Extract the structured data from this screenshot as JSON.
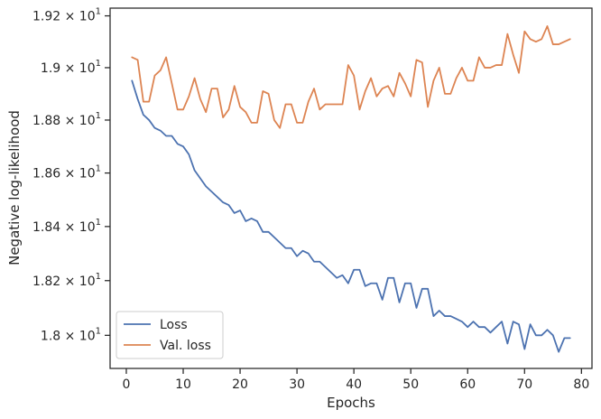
{
  "chart_data": {
    "type": "line",
    "title": "",
    "xlabel": "Epochs",
    "ylabel": "Negative log-likelihood",
    "xlim": [
      -2.85,
      81.85
    ],
    "ylim": [
      17.88,
      19.23
    ],
    "yscale": "log",
    "grid": false,
    "legend_position": "lower-left",
    "x_ticks": [
      {
        "value": 0,
        "label": "0"
      },
      {
        "value": 10,
        "label": "10"
      },
      {
        "value": 20,
        "label": "20"
      },
      {
        "value": 30,
        "label": "30"
      },
      {
        "value": 40,
        "label": "40"
      },
      {
        "value": 50,
        "label": "50"
      },
      {
        "value": 60,
        "label": "60"
      },
      {
        "value": 70,
        "label": "70"
      },
      {
        "value": 80,
        "label": "80"
      }
    ],
    "y_ticks": [
      {
        "value": 18.0,
        "mantissa": "1.8 × 10",
        "exp": "1"
      },
      {
        "value": 18.2,
        "mantissa": "1.82 × 10",
        "exp": "1"
      },
      {
        "value": 18.4,
        "mantissa": "1.84 × 10",
        "exp": "1"
      },
      {
        "value": 18.6,
        "mantissa": "1.86 × 10",
        "exp": "1"
      },
      {
        "value": 18.8,
        "mantissa": "1.88 × 10",
        "exp": "1"
      },
      {
        "value": 19.0,
        "mantissa": "1.9 × 10",
        "exp": "1"
      },
      {
        "value": 19.2,
        "mantissa": "1.92 × 10",
        "exp": "1"
      }
    ],
    "x": [
      1,
      2,
      3,
      4,
      5,
      6,
      7,
      8,
      9,
      10,
      11,
      12,
      13,
      14,
      15,
      16,
      17,
      18,
      19,
      20,
      21,
      22,
      23,
      24,
      25,
      26,
      27,
      28,
      29,
      30,
      31,
      32,
      33,
      34,
      35,
      36,
      37,
      38,
      39,
      40,
      41,
      42,
      43,
      44,
      45,
      46,
      47,
      48,
      49,
      50,
      51,
      52,
      53,
      54,
      55,
      56,
      57,
      58,
      59,
      60,
      61,
      62,
      63,
      64,
      65,
      66,
      67,
      68,
      69,
      70,
      71,
      72,
      73,
      74,
      75,
      76,
      77,
      78
    ],
    "series": [
      {
        "name": "Loss",
        "color": "#4c72b0",
        "values": [
          18.95,
          18.88,
          18.82,
          18.8,
          18.77,
          18.76,
          18.74,
          18.74,
          18.71,
          18.7,
          18.67,
          18.61,
          18.58,
          18.55,
          18.53,
          18.51,
          18.49,
          18.48,
          18.45,
          18.46,
          18.42,
          18.43,
          18.42,
          18.38,
          18.38,
          18.36,
          18.34,
          18.32,
          18.32,
          18.29,
          18.31,
          18.3,
          18.27,
          18.27,
          18.25,
          18.23,
          18.21,
          18.22,
          18.19,
          18.24,
          18.24,
          18.18,
          18.19,
          18.19,
          18.13,
          18.21,
          18.21,
          18.12,
          18.19,
          18.19,
          18.1,
          18.17,
          18.17,
          18.07,
          18.09,
          18.07,
          18.07,
          18.06,
          18.05,
          18.03,
          18.05,
          18.03,
          18.03,
          18.01,
          18.03,
          18.05,
          17.97,
          18.05,
          18.04,
          17.95,
          18.04,
          18.0,
          18.0,
          18.02,
          18.0,
          17.94,
          17.99,
          17.99
        ]
      },
      {
        "name": "Val. loss",
        "color": "#dd8452",
        "values": [
          19.04,
          19.03,
          18.87,
          18.87,
          18.97,
          18.99,
          19.04,
          18.94,
          18.84,
          18.84,
          18.89,
          18.96,
          18.88,
          18.83,
          18.92,
          18.92,
          18.81,
          18.84,
          18.93,
          18.85,
          18.83,
          18.79,
          18.79,
          18.91,
          18.9,
          18.8,
          18.77,
          18.86,
          18.86,
          18.79,
          18.79,
          18.87,
          18.92,
          18.84,
          18.86,
          18.86,
          18.86,
          18.86,
          19.01,
          18.97,
          18.84,
          18.91,
          18.96,
          18.89,
          18.92,
          18.93,
          18.89,
          18.98,
          18.94,
          18.89,
          19.03,
          19.02,
          18.85,
          18.95,
          19.0,
          18.9,
          18.9,
          18.96,
          19.0,
          18.95,
          18.95,
          19.04,
          19.0,
          19.0,
          19.01,
          19.01,
          19.13,
          19.05,
          18.98,
          19.14,
          19.11,
          19.1,
          19.11,
          19.16,
          19.09,
          19.09,
          19.1,
          19.11
        ]
      }
    ]
  }
}
